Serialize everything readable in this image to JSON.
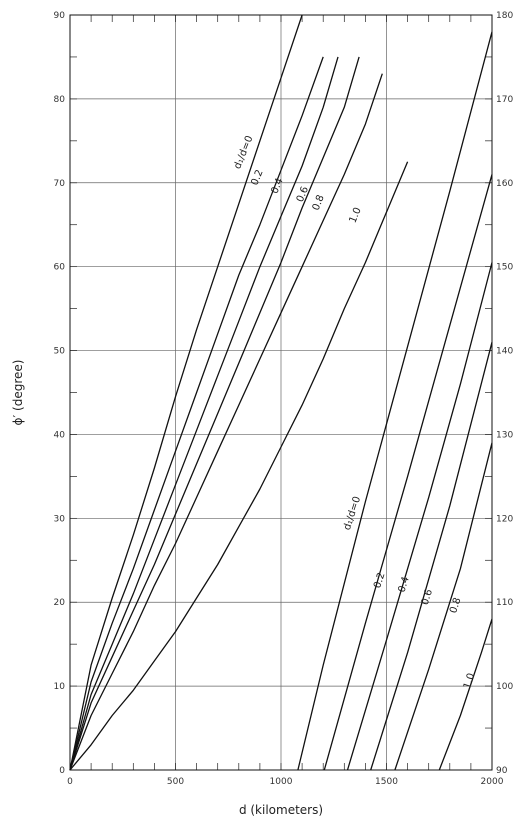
{
  "chart_data": {
    "type": "line",
    "xlabel": "d (kilometers)",
    "ylabel": "ϕ′ (degree)",
    "xlim": [
      0,
      2000
    ],
    "ylim_left": [
      0,
      90
    ],
    "ylim_right": [
      90,
      180
    ],
    "x_ticks": [
      "0",
      "500",
      "1000",
      "1500",
      "2000"
    ],
    "y_ticks_left": [
      "0",
      "10",
      "20",
      "30",
      "40",
      "50",
      "60",
      "70",
      "80",
      "90"
    ],
    "y_ticks_right": [
      "90",
      "100",
      "110",
      "120",
      "130",
      "140",
      "150",
      "160",
      "170",
      "180"
    ],
    "grid": true,
    "series": [
      {
        "name": "d₁/d=0",
        "axis": "left",
        "x": [
          0,
          100,
          200,
          300,
          400,
          500,
          600,
          700,
          800,
          900,
          1000,
          1100
        ],
        "y": [
          0,
          12.5,
          20.5,
          28,
          36,
          44.5,
          52.5,
          60,
          67.5,
          75,
          82.5,
          90
        ]
      },
      {
        "name": "0.2",
        "axis": "left",
        "x": [
          0,
          100,
          200,
          300,
          400,
          500,
          600,
          700,
          800,
          900,
          1000,
          1100,
          1200
        ],
        "y": [
          0,
          10.5,
          17.5,
          24,
          31,
          38,
          45,
          52,
          59,
          65,
          71.5,
          78,
          85
        ]
      },
      {
        "name": "0.4",
        "axis": "left",
        "x": [
          0,
          100,
          200,
          300,
          400,
          500,
          600,
          700,
          800,
          900,
          1000,
          1100,
          1200,
          1270
        ],
        "y": [
          0,
          9,
          15,
          21,
          27.5,
          34,
          40.5,
          47,
          53.5,
          60,
          66,
          72,
          79,
          85
        ]
      },
      {
        "name": "0.6",
        "axis": "left",
        "x": [
          0,
          100,
          200,
          300,
          400,
          500,
          600,
          700,
          800,
          900,
          1000,
          1100,
          1200,
          1300,
          1370
        ],
        "y": [
          0,
          8,
          13.5,
          19,
          24.5,
          30.5,
          36.5,
          42.5,
          48.5,
          54.5,
          60.5,
          67,
          73,
          79,
          85
        ]
      },
      {
        "name": "0.8",
        "axis": "left",
        "x": [
          0,
          100,
          200,
          300,
          400,
          500,
          600,
          700,
          800,
          900,
          1000,
          1100,
          1200,
          1300,
          1400,
          1480
        ],
        "y": [
          0,
          6.5,
          11.5,
          16.5,
          22,
          27,
          32.5,
          38,
          43.5,
          49,
          54.5,
          60,
          65.5,
          71,
          77,
          83
        ]
      },
      {
        "name": "1.0",
        "axis": "left",
        "x": [
          0,
          100,
          200,
          300,
          400,
          500,
          600,
          700,
          800,
          900,
          1000,
          1100,
          1200,
          1300,
          1400,
          1500,
          1600
        ],
        "y": [
          0,
          3,
          6.5,
          9.5,
          13,
          16.5,
          20.5,
          24.5,
          29,
          33.5,
          38.5,
          43.5,
          49,
          55,
          60.5,
          66.5,
          72.5
        ]
      },
      {
        "name": "d₁/d=0",
        "axis": "right",
        "x": [
          1080,
          1200,
          1400,
          1600,
          1800,
          2000
        ],
        "y": [
          90,
          102.5,
          122,
          140.5,
          159,
          178
        ]
      },
      {
        "name": "0.2",
        "axis": "right",
        "x": [
          1205,
          1400,
          1600,
          1800,
          2000
        ],
        "y": [
          90,
          107.5,
          125,
          143,
          161
        ]
      },
      {
        "name": "0.4",
        "axis": "right",
        "x": [
          1315,
          1500,
          1700,
          1850,
          2000
        ],
        "y": [
          90,
          105.5,
          122.5,
          136,
          150.5
        ]
      },
      {
        "name": "0.6",
        "axis": "right",
        "x": [
          1425,
          1600,
          1800,
          2000
        ],
        "y": [
          90,
          104,
          121.5,
          141
        ]
      },
      {
        "name": "0.8",
        "axis": "right",
        "x": [
          1540,
          1700,
          1850,
          2000
        ],
        "y": [
          90,
          102,
          114,
          129
        ]
      },
      {
        "name": "1.0",
        "axis": "right",
        "x": [
          1750,
          1850,
          1950,
          2000
        ],
        "y": [
          90,
          96.5,
          104,
          108
        ]
      }
    ],
    "curve_labels_upper": [
      {
        "text": "d₁/d=0",
        "x": 835,
        "y": 73.5
      },
      {
        "text": "0.2",
        "x": 900,
        "y": 70.5
      },
      {
        "text": "0.4",
        "x": 995,
        "y": 69.5
      },
      {
        "text": "0.6",
        "x": 1115,
        "y": 68.5
      },
      {
        "text": "0.8",
        "x": 1190,
        "y": 67.5
      },
      {
        "text": "1.0",
        "x": 1365,
        "y": 66
      }
    ],
    "curve_labels_lower": [
      {
        "text": "d₁/d=0",
        "x": 1350,
        "y": 120.5
      },
      {
        "text": "0.2",
        "x": 1480,
        "y": 112.5
      },
      {
        "text": "0.4",
        "x": 1595,
        "y": 112
      },
      {
        "text": "0.6",
        "x": 1705,
        "y": 110.5
      },
      {
        "text": "0.8",
        "x": 1840,
        "y": 109.5
      },
      {
        "text": "1.0",
        "x": 1905,
        "y": 100.5
      }
    ]
  }
}
